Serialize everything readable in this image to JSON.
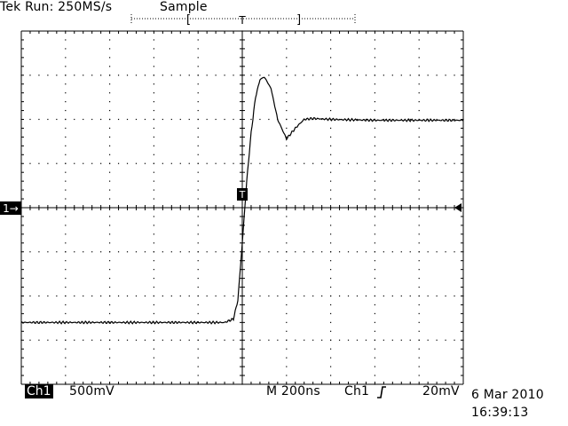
{
  "header": {
    "run_status": "Tek Run: 250MS/s",
    "acquisition_mode": "Sample"
  },
  "footer": {
    "channel": "Ch1",
    "channel_scale": "500mV",
    "timebase": "M  200ns",
    "trigger_source": "Ch1",
    "trigger_level": "20mV",
    "date": "6 Mar 2010",
    "time": "16:39:13"
  },
  "markers": {
    "channel_ground_label": "1→",
    "trigger_marker_label": "T",
    "record_position_label": "T"
  },
  "colors": {
    "background": "#ffffff",
    "trace": "#000000",
    "graticule": "#000000"
  },
  "chart_data": {
    "type": "line",
    "title": "",
    "xlabel": "",
    "ylabel": "",
    "x_units": "ns",
    "y_units": "mV",
    "xlim": [
      -1000,
      1000
    ],
    "ylim": [
      -2000,
      2000
    ],
    "grid": true,
    "series": [
      {
        "name": "",
        "x": [
          -1000,
          -400,
          -80,
          -40,
          -20,
          0,
          20,
          40,
          60,
          80,
          100,
          130,
          160,
          200,
          240,
          280,
          320,
          400,
          600,
          800,
          1000
        ],
        "y": [
          -1300,
          -1300,
          -1300,
          -1260,
          -1050,
          -400,
          300,
          850,
          1250,
          1450,
          1480,
          1350,
          1000,
          780,
          900,
          1000,
          1010,
          1000,
          990,
          990,
          990
        ]
      }
    ]
  }
}
